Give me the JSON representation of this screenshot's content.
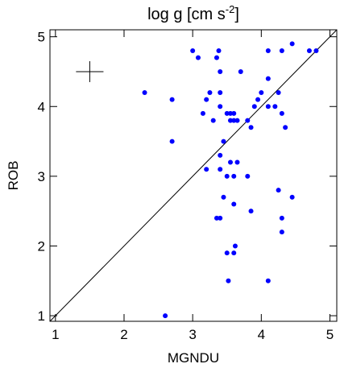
{
  "chart_data": {
    "type": "scatter",
    "title": {
      "text": "log g [cm s",
      "superscript": "-2",
      "suffix": "]"
    },
    "x_label": "MGNDU",
    "y_label": "ROB",
    "xlim": [
      0.92,
      5.1
    ],
    "ylim": [
      0.92,
      5.1
    ],
    "xticks": [
      1,
      2,
      3,
      4,
      5
    ],
    "yticks": [
      1,
      2,
      3,
      4,
      5
    ],
    "identity_line": true,
    "error_cross": {
      "x": 1.5,
      "y": 4.5,
      "xerr": 0.2,
      "yerr": 0.15
    },
    "series": [
      {
        "color": "#0000ff",
        "x": [
          3.0,
          3.08,
          3.38,
          3.35,
          3.4,
          3.7,
          4.1,
          4.3,
          4.45,
          4.7,
          4.8,
          2.3,
          2.7,
          2.7,
          3.25,
          3.2,
          3.15,
          3.3,
          3.4,
          3.4,
          3.5,
          3.55,
          3.55,
          3.6,
          3.6,
          3.65,
          3.8,
          3.85,
          3.9,
          3.95,
          4.0,
          4.1,
          4.1,
          4.2,
          4.25,
          4.3,
          4.35,
          3.45,
          3.4,
          3.4,
          3.2,
          3.5,
          3.55,
          3.65,
          3.6,
          3.8,
          3.45,
          3.6,
          3.85,
          3.35,
          3.4,
          4.25,
          4.3,
          4.3,
          4.45,
          3.5,
          3.6,
          3.62,
          3.52,
          4.1,
          2.6
        ],
        "values": [
          4.8,
          4.7,
          4.8,
          4.7,
          4.5,
          4.5,
          4.8,
          4.8,
          4.9,
          4.8,
          4.8,
          4.2,
          4.1,
          3.5,
          4.2,
          4.1,
          3.9,
          3.8,
          4.0,
          4.2,
          3.9,
          3.8,
          3.9,
          3.8,
          3.9,
          3.8,
          3.8,
          3.7,
          4.0,
          4.1,
          4.2,
          4.4,
          4.0,
          4.0,
          4.2,
          3.9,
          3.7,
          3.5,
          3.3,
          3.1,
          3.1,
          3.0,
          3.2,
          3.2,
          3.0,
          3.0,
          2.7,
          2.6,
          2.5,
          2.4,
          2.4,
          2.8,
          2.4,
          2.2,
          2.7,
          1.9,
          1.9,
          2.0,
          1.5,
          1.5,
          1.0
        ]
      }
    ]
  }
}
